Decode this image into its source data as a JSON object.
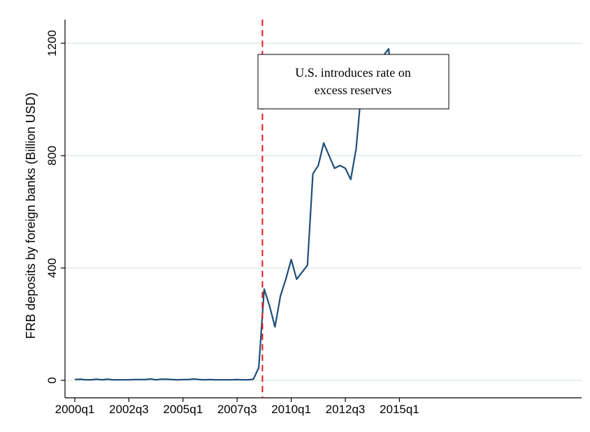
{
  "chart_data": {
    "type": "line",
    "title": "",
    "xlabel": "",
    "ylabel": "FRB deposits by foreign banks (Billion USD)",
    "xlim": [
      "2000q1",
      "2015q2"
    ],
    "ylim": [
      0,
      1200
    ],
    "x_ticks": [
      "2000q1",
      "2002q3",
      "2005q1",
      "2007q3",
      "2010q1",
      "2012q3",
      "2015q1"
    ],
    "y_ticks": [
      0,
      400,
      800,
      1200
    ],
    "grid": true,
    "legend": "none",
    "colors": {
      "series": "#1f4e79",
      "event_line": "#e41a1c",
      "grid": "#dfeaea",
      "axis": "#000000"
    },
    "event_line": {
      "x": "2008q4",
      "annotation_lines": [
        "U.S. introduces rate on",
        "excess reserves"
      ]
    },
    "series": [
      {
        "x": [
          "2000q1",
          "2000q2",
          "2000q3",
          "2000q4",
          "2001q1",
          "2001q2",
          "2001q3",
          "2001q4",
          "2002q1",
          "2002q2",
          "2002q3",
          "2002q4",
          "2003q1",
          "2003q2",
          "2003q3",
          "2003q4",
          "2004q1",
          "2004q2",
          "2004q3",
          "2004q4",
          "2005q1",
          "2005q2",
          "2005q3",
          "2005q4",
          "2006q1",
          "2006q2",
          "2006q3",
          "2006q4",
          "2007q1",
          "2007q2",
          "2007q3",
          "2007q4",
          "2008q1",
          "2008q2",
          "2008q3",
          "2008q4",
          "2009q1",
          "2009q2",
          "2009q3",
          "2009q4",
          "2010q1",
          "2010q2",
          "2010q3",
          "2010q4",
          "2011q1",
          "2011q2",
          "2011q3",
          "2011q4",
          "2012q1",
          "2012q2",
          "2012q3",
          "2012q4",
          "2013q1",
          "2013q2",
          "2013q3",
          "2013q4",
          "2014q1",
          "2014q2",
          "2014q3",
          "2014q4",
          "2015q1",
          "2015q2"
        ],
        "values": [
          3,
          4,
          2,
          2,
          4,
          2,
          4,
          2,
          2,
          2,
          2,
          3,
          3,
          3,
          5,
          2,
          4,
          4,
          3,
          2,
          3,
          3,
          5,
          3,
          2,
          3,
          2,
          2,
          2,
          2,
          3,
          2,
          2,
          4,
          45,
          325,
          265,
          190,
          300,
          360,
          430,
          360,
          385,
          410,
          735,
          765,
          845,
          800,
          755,
          765,
          755,
          715,
          825,
          1040,
          1035,
          1020,
          1155,
          1155,
          1180,
          995,
          985,
          975
        ]
      }
    ]
  }
}
